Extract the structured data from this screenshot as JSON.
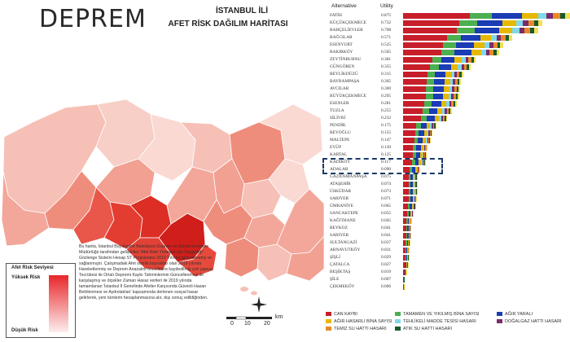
{
  "title": "DEPREM",
  "subtitle_line1": "İSTANBUL İLİ",
  "subtitle_line2": "AFET RİSK DAĞILIM HARİTASI",
  "legend": {
    "title": "Afet Risk Seviyesi",
    "high": "Yüksek Risk",
    "low": "Düşük Risk",
    "high_color": "#e8262a",
    "low_color": "#fdeeee"
  },
  "description": "Bu harita, İstanbul Büyükşehir Belediyesi Deprem ve Zemin İnceleme Müdürlüğü tarafından geliştirilen 'Afet Risk Yönetimi için Yaygınlığı' Gözlenge Sistemi Hesap ST Projesinden 2019 Yılında güncellenmiş ve sağlanmıştır. Çalışmadaki Afet sismik kaynaklar olan 2019 yılında Hareketlenmiş ve Deprem Anazalmı önceliklere kaydedilmiş çok yapıya Tecrübesi ile Ortalı Depremi Kaybı Tahminlerinin Güncellenmesi ile karşılaşmış ve ölçekler Zaman Hasar verileri ile 2019 yılında tamamlanan 'İstanbul İl Genelinde Afetler Karşısında Güvenli Hasarı Belirlenmesi ve Aydınlatılan' kapsamında derlenen sosyal hasar gelirlerek, yeni tümlerin hesaplanmasına alır, dışı sonuç edildiğinden.",
  "scale": {
    "labels": [
      "0",
      "10",
      "20"
    ],
    "unit": "km"
  },
  "chart_data": {
    "type": "bar",
    "header": {
      "alternative": "Alternative",
      "utility": "Utility"
    },
    "categories": [
      "FATİH",
      "KÜÇÜKÇEKMECE",
      "BAHÇELİEVLER",
      "BAĞCILAR",
      "ESENYURT",
      "BAKIRKÖY",
      "ZEYTİNBURNU",
      "GÜNGÖREN",
      "BEYLİKDÜZÜ",
      "BAYRAMPAŞA",
      "AVCILAR",
      "BÜYÜKÇEKMECE",
      "ESENLER",
      "TUZLA",
      "SİLİVRİ",
      "PENDİK",
      "BEYOĞLU",
      "MALTEPE",
      "EYÜP",
      "KARTAL",
      "KADIKÖY",
      "ADALAR",
      "GAZİOSMANPAŞA",
      "ATAŞEHİR",
      "ÜSKÜDAR",
      "SARIYER",
      "ÜMRANİYE",
      "SANCAKTEPE",
      "KAĞITHANE",
      "BEYKOZ",
      "SARIYER",
      "SULTANGAZİ",
      "ARNAVUTKÖY",
      "ŞİŞLİ",
      "ÇATALCA",
      "BEŞİKTAŞ",
      "ŞİLE",
      "ÇEKMEKÖY"
    ],
    "utilities": [
      "0.875",
      "0.732",
      "0.708",
      "0.571",
      "0.525",
      "0.505",
      "0.381",
      "0.355",
      "0.315",
      "0.305",
      "0.300",
      "0.295",
      "0.281",
      "0.255",
      "0.232",
      "0.175",
      "0.155",
      "0.147",
      "0.130",
      "0.125",
      "0.117",
      "0.090",
      "0.075",
      "0.074",
      "0.073",
      "0.071",
      "0.065",
      "0.055",
      "0.045",
      "0.041",
      "0.041",
      "0.037",
      "0.031",
      "0.029",
      "0.027",
      "0.019",
      "0.007",
      "0.006"
    ],
    "series": [
      {
        "name": "CAN KAYBI",
        "color": "#c81e2a"
      },
      {
        "name": "TAMAMEN VE YIKILMIŞ BİNA SAYISI",
        "color": "#4caf50"
      },
      {
        "name": "AĞIR YARALI",
        "color": "#1a3cb4"
      },
      {
        "name": "AĞIR HASARLI BİNA SAYISI",
        "color": "#e6b800"
      },
      {
        "name": "TEHLİKELİ MADDE TESİSİ HASARI",
        "color": "#80d8e8"
      },
      {
        "name": "DOĞALGAZ HATTI HASARI",
        "color": "#7b2a6b"
      },
      {
        "name": "TEMİZ SU HATTI HASARI",
        "color": "#e88a2a"
      },
      {
        "name": "ATIK SU HATTI HASARI",
        "color": "#1a5a2a"
      },
      {
        "name": "",
        "color": "#f0e05a"
      }
    ]
  },
  "map_districts": [
    {
      "color": "#f3a79a"
    },
    {
      "color": "#f6c0b6"
    },
    {
      "color": "#ef8d7c"
    },
    {
      "color": "#e9574a"
    },
    {
      "color": "#d92a22"
    },
    {
      "color": "#fad9d3"
    },
    {
      "color": "#f1a092"
    }
  ]
}
